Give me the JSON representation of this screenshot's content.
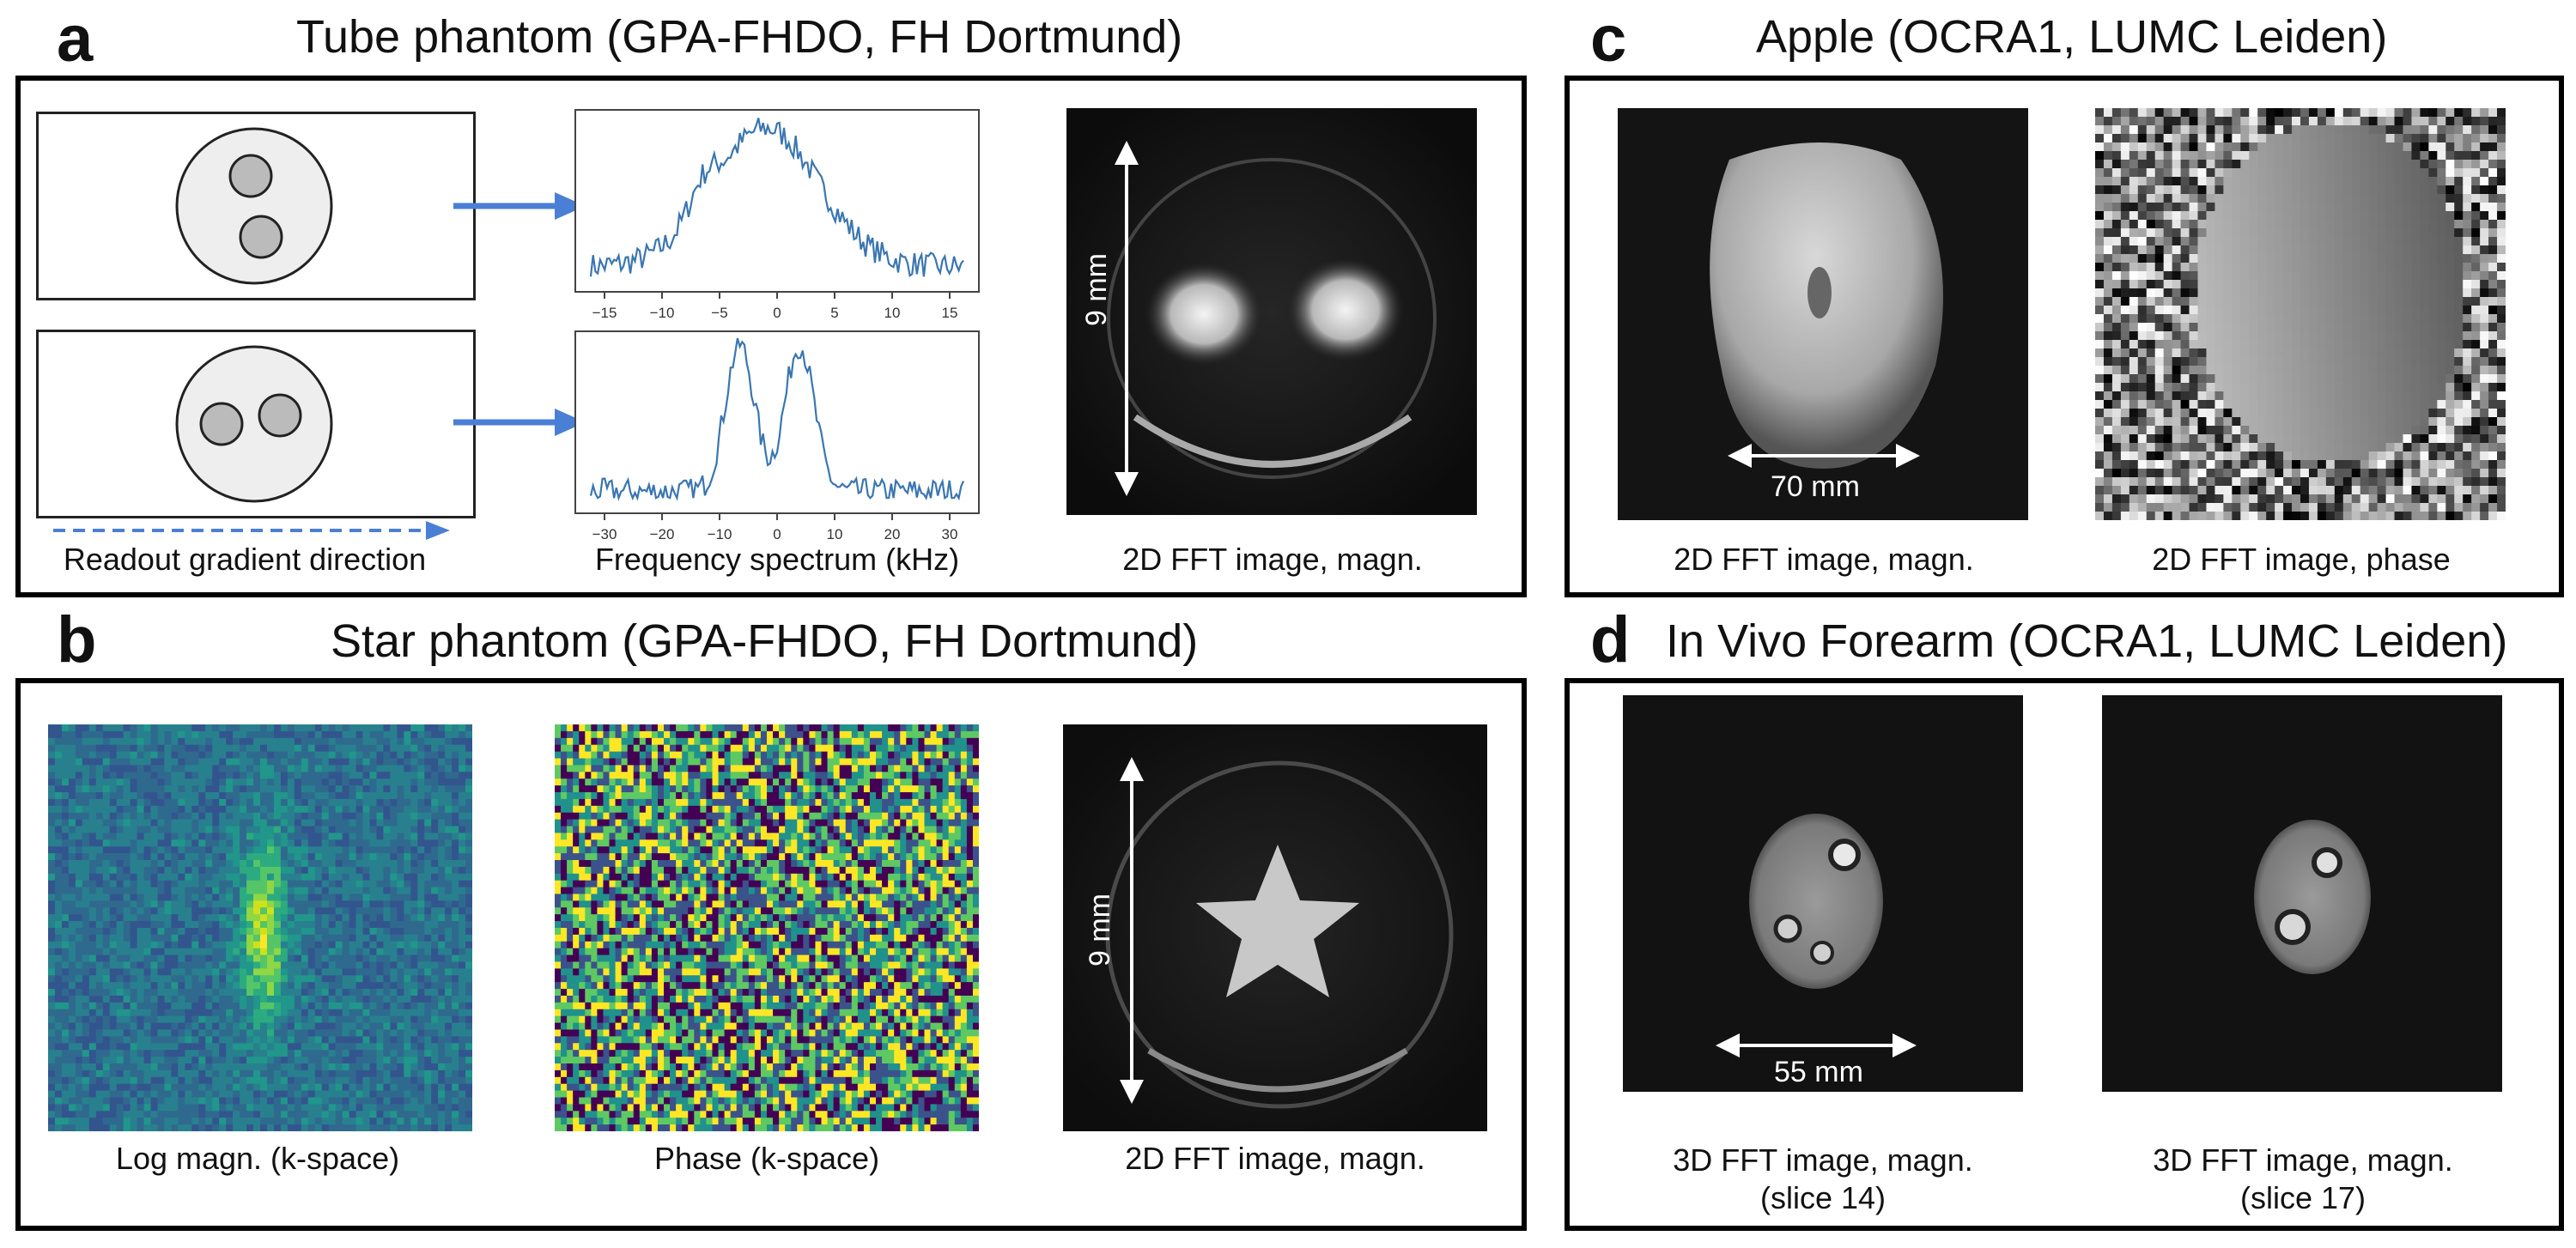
{
  "panels": {
    "a": {
      "letter": "a",
      "title": "Tube phantom (GPA-FHDO, FH Dortmund)",
      "readout_label": "Readout gradient direction",
      "spectrum_caption": "Frequency spectrum (kHz)",
      "image_caption": "2D FFT image, magn.",
      "scale_bar": "9 mm",
      "spectrum_top_ticks": [
        "−15",
        "−10",
        "−5",
        "0",
        "5",
        "10",
        "15"
      ],
      "spectrum_bottom_ticks": [
        "−30",
        "−20",
        "−10",
        "0",
        "10",
        "20",
        "30"
      ]
    },
    "b": {
      "letter": "b",
      "title": "Star phantom (GPA-FHDO, FH Dortmund)",
      "logmag_caption": "Log magn. (k-space)",
      "phase_caption": "Phase (k-space)",
      "image_caption": "2D FFT image, magn.",
      "scale_bar": "9 mm"
    },
    "c": {
      "letter": "c",
      "title": "Apple (OCRA1, LUMC Leiden)",
      "magn_caption": "2D FFT image, magn.",
      "phase_caption": "2D FFT image, phase",
      "scale_bar": "70 mm"
    },
    "d": {
      "letter": "d",
      "title": "In Vivo Forearm (OCRA1, LUMC Leiden)",
      "left_caption_line1": "3D FFT image, magn.",
      "left_caption_line2": "(slice 14)",
      "right_caption_line1": "3D FFT image, magn.",
      "right_caption_line2": "(slice 17)",
      "scale_bar": "55 mm"
    }
  },
  "colors": {
    "arrow_blue": "#4a7fd6",
    "spectrum_line": "#3b76b0",
    "phantom_fill": "#eeeeee",
    "tube_fill": "#bbbbbb"
  }
}
